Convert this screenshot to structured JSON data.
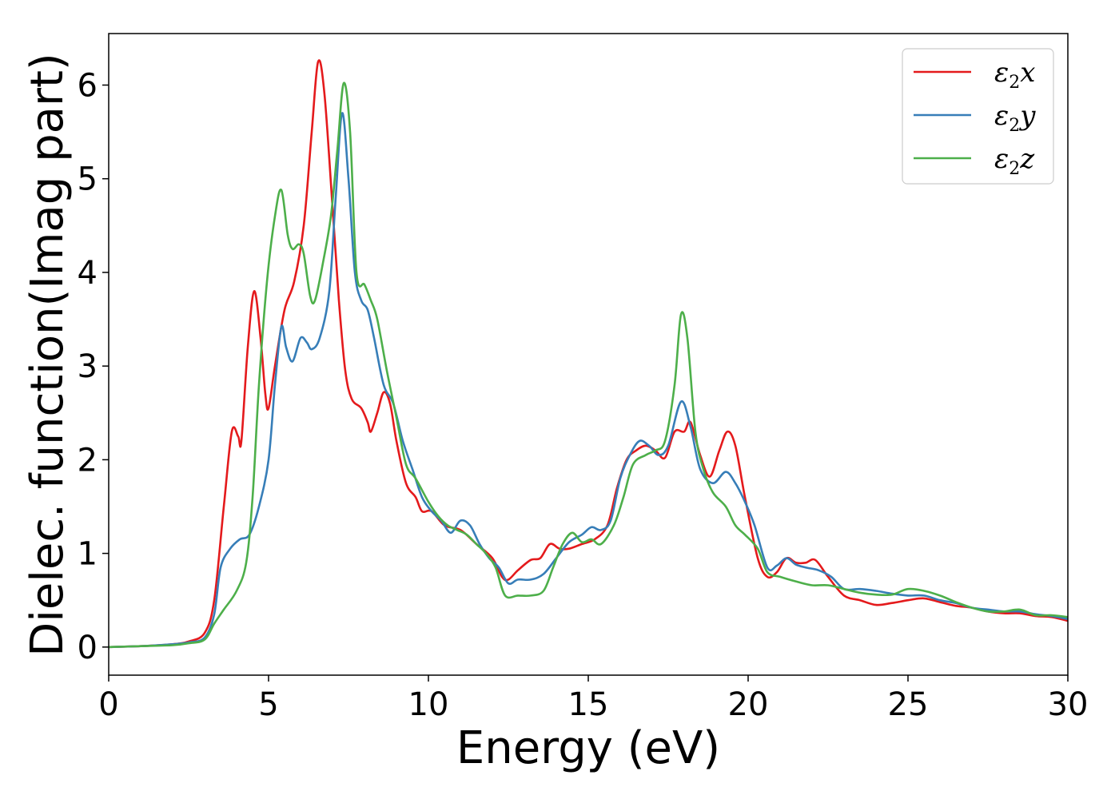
{
  "chart_data": {
    "type": "line",
    "title": "",
    "xlabel": "Energy (eV)",
    "ylabel": "Dielec. function(Imag part)",
    "xlim": [
      0,
      30
    ],
    "ylim": [
      -0.3,
      6.55
    ],
    "xticks": [
      "0",
      "5",
      "10",
      "15",
      "20",
      "25",
      "30"
    ],
    "yticks": [
      "0",
      "1",
      "2",
      "3",
      "4",
      "5",
      "6"
    ],
    "grid": false,
    "legend_position": "top-right",
    "series": [
      {
        "name": "ε2x",
        "legend_base": "ε",
        "legend_sub": "2",
        "legend_suffix": "x",
        "color": "#e41a1c",
        "points": [
          [
            0,
            0.0
          ],
          [
            1,
            0.01
          ],
          [
            2,
            0.03
          ],
          [
            2.5,
            0.06
          ],
          [
            3,
            0.15
          ],
          [
            3.3,
            0.5
          ],
          [
            3.6,
            1.5
          ],
          [
            3.85,
            2.3
          ],
          [
            4.05,
            2.25
          ],
          [
            4.15,
            2.2
          ],
          [
            4.35,
            3.2
          ],
          [
            4.55,
            3.8
          ],
          [
            4.75,
            3.3
          ],
          [
            4.9,
            2.7
          ],
          [
            5.0,
            2.55
          ],
          [
            5.2,
            3.0
          ],
          [
            5.5,
            3.6
          ],
          [
            5.8,
            3.9
          ],
          [
            6.1,
            4.5
          ],
          [
            6.35,
            5.5
          ],
          [
            6.55,
            6.25
          ],
          [
            6.75,
            5.9
          ],
          [
            7.0,
            4.7
          ],
          [
            7.2,
            3.7
          ],
          [
            7.4,
            2.95
          ],
          [
            7.6,
            2.65
          ],
          [
            7.9,
            2.55
          ],
          [
            8.1,
            2.4
          ],
          [
            8.2,
            2.3
          ],
          [
            8.4,
            2.5
          ],
          [
            8.6,
            2.72
          ],
          [
            8.8,
            2.6
          ],
          [
            9.0,
            2.2
          ],
          [
            9.3,
            1.75
          ],
          [
            9.6,
            1.6
          ],
          [
            9.8,
            1.45
          ],
          [
            10.1,
            1.45
          ],
          [
            10.5,
            1.3
          ],
          [
            11,
            1.25
          ],
          [
            11.5,
            1.1
          ],
          [
            12,
            0.95
          ],
          [
            12.3,
            0.75
          ],
          [
            12.5,
            0.72
          ],
          [
            12.8,
            0.82
          ],
          [
            13.2,
            0.93
          ],
          [
            13.5,
            0.95
          ],
          [
            13.8,
            1.1
          ],
          [
            14.1,
            1.05
          ],
          [
            14.4,
            1.05
          ],
          [
            14.8,
            1.1
          ],
          [
            15.2,
            1.15
          ],
          [
            15.6,
            1.3
          ],
          [
            15.9,
            1.7
          ],
          [
            16.2,
            2.0
          ],
          [
            16.5,
            2.1
          ],
          [
            16.8,
            2.15
          ],
          [
            17.1,
            2.1
          ],
          [
            17.4,
            2.02
          ],
          [
            17.7,
            2.3
          ],
          [
            18.0,
            2.3
          ],
          [
            18.2,
            2.4
          ],
          [
            18.5,
            2.05
          ],
          [
            18.8,
            1.82
          ],
          [
            19.1,
            2.1
          ],
          [
            19.35,
            2.3
          ],
          [
            19.6,
            2.15
          ],
          [
            19.9,
            1.6
          ],
          [
            20.3,
            0.95
          ],
          [
            20.6,
            0.75
          ],
          [
            20.9,
            0.8
          ],
          [
            21.2,
            0.95
          ],
          [
            21.5,
            0.9
          ],
          [
            21.8,
            0.9
          ],
          [
            22.1,
            0.93
          ],
          [
            22.5,
            0.75
          ],
          [
            23,
            0.55
          ],
          [
            23.5,
            0.5
          ],
          [
            24,
            0.45
          ],
          [
            24.5,
            0.47
          ],
          [
            25,
            0.5
          ],
          [
            25.5,
            0.52
          ],
          [
            26,
            0.48
          ],
          [
            26.5,
            0.44
          ],
          [
            27,
            0.42
          ],
          [
            27.5,
            0.38
          ],
          [
            28,
            0.36
          ],
          [
            28.5,
            0.36
          ],
          [
            29,
            0.33
          ],
          [
            29.5,
            0.32
          ],
          [
            30,
            0.28
          ]
        ]
      },
      {
        "name": "ε2y",
        "legend_base": "ε",
        "legend_sub": "2",
        "legend_suffix": "y",
        "color": "#377eb8",
        "points": [
          [
            0,
            0.0
          ],
          [
            1,
            0.01
          ],
          [
            2,
            0.03
          ],
          [
            2.5,
            0.05
          ],
          [
            3,
            0.1
          ],
          [
            3.3,
            0.35
          ],
          [
            3.5,
            0.85
          ],
          [
            3.8,
            1.05
          ],
          [
            4.1,
            1.15
          ],
          [
            4.4,
            1.2
          ],
          [
            4.7,
            1.5
          ],
          [
            5.0,
            2.0
          ],
          [
            5.2,
            2.8
          ],
          [
            5.4,
            3.42
          ],
          [
            5.55,
            3.2
          ],
          [
            5.75,
            3.05
          ],
          [
            6.0,
            3.3
          ],
          [
            6.2,
            3.25
          ],
          [
            6.35,
            3.18
          ],
          [
            6.6,
            3.3
          ],
          [
            6.9,
            3.8
          ],
          [
            7.1,
            4.8
          ],
          [
            7.3,
            5.7
          ],
          [
            7.5,
            5.0
          ],
          [
            7.7,
            4.0
          ],
          [
            7.9,
            3.7
          ],
          [
            8.1,
            3.6
          ],
          [
            8.3,
            3.3
          ],
          [
            8.6,
            2.8
          ],
          [
            8.9,
            2.6
          ],
          [
            9.2,
            2.2
          ],
          [
            9.5,
            1.9
          ],
          [
            9.8,
            1.6
          ],
          [
            10.1,
            1.45
          ],
          [
            10.4,
            1.35
          ],
          [
            10.7,
            1.22
          ],
          [
            11.0,
            1.35
          ],
          [
            11.3,
            1.3
          ],
          [
            11.6,
            1.1
          ],
          [
            11.9,
            0.95
          ],
          [
            12.2,
            0.85
          ],
          [
            12.5,
            0.68
          ],
          [
            12.8,
            0.72
          ],
          [
            13.2,
            0.72
          ],
          [
            13.6,
            0.78
          ],
          [
            14.0,
            0.95
          ],
          [
            14.4,
            1.12
          ],
          [
            14.8,
            1.2
          ],
          [
            15.1,
            1.28
          ],
          [
            15.4,
            1.25
          ],
          [
            15.7,
            1.35
          ],
          [
            16.0,
            1.8
          ],
          [
            16.3,
            2.05
          ],
          [
            16.6,
            2.2
          ],
          [
            16.9,
            2.15
          ],
          [
            17.2,
            2.05
          ],
          [
            17.5,
            2.15
          ],
          [
            17.9,
            2.62
          ],
          [
            18.2,
            2.35
          ],
          [
            18.5,
            1.9
          ],
          [
            18.9,
            1.75
          ],
          [
            19.3,
            1.87
          ],
          [
            19.6,
            1.75
          ],
          [
            19.9,
            1.55
          ],
          [
            20.2,
            1.3
          ],
          [
            20.6,
            0.85
          ],
          [
            20.9,
            0.87
          ],
          [
            21.2,
            0.95
          ],
          [
            21.5,
            0.88
          ],
          [
            21.8,
            0.85
          ],
          [
            22.2,
            0.82
          ],
          [
            22.6,
            0.75
          ],
          [
            23.0,
            0.62
          ],
          [
            23.5,
            0.62
          ],
          [
            24.0,
            0.6
          ],
          [
            24.5,
            0.57
          ],
          [
            25.0,
            0.55
          ],
          [
            25.5,
            0.55
          ],
          [
            26,
            0.5
          ],
          [
            26.5,
            0.47
          ],
          [
            27,
            0.42
          ],
          [
            27.5,
            0.4
          ],
          [
            28,
            0.38
          ],
          [
            28.5,
            0.38
          ],
          [
            29,
            0.35
          ],
          [
            29.5,
            0.33
          ],
          [
            30,
            0.3
          ]
        ]
      },
      {
        "name": "ε2z",
        "legend_base": "ε",
        "legend_sub": "2",
        "legend_suffix": "z",
        "color": "#4daf4a",
        "points": [
          [
            0,
            0.0
          ],
          [
            1,
            0.01
          ],
          [
            2,
            0.02
          ],
          [
            2.5,
            0.04
          ],
          [
            3,
            0.08
          ],
          [
            3.3,
            0.25
          ],
          [
            3.6,
            0.4
          ],
          [
            4.0,
            0.6
          ],
          [
            4.3,
            0.9
          ],
          [
            4.5,
            1.6
          ],
          [
            4.7,
            2.8
          ],
          [
            4.95,
            3.9
          ],
          [
            5.2,
            4.6
          ],
          [
            5.4,
            4.88
          ],
          [
            5.6,
            4.4
          ],
          [
            5.75,
            4.25
          ],
          [
            5.95,
            4.3
          ],
          [
            6.1,
            4.2
          ],
          [
            6.3,
            3.75
          ],
          [
            6.45,
            3.7
          ],
          [
            6.7,
            4.1
          ],
          [
            6.95,
            4.6
          ],
          [
            7.15,
            5.3
          ],
          [
            7.35,
            6.02
          ],
          [
            7.55,
            5.5
          ],
          [
            7.75,
            4.0
          ],
          [
            8.0,
            3.87
          ],
          [
            8.2,
            3.7
          ],
          [
            8.4,
            3.5
          ],
          [
            8.7,
            2.95
          ],
          [
            9.0,
            2.45
          ],
          [
            9.3,
            1.95
          ],
          [
            9.6,
            1.8
          ],
          [
            10.0,
            1.55
          ],
          [
            10.3,
            1.4
          ],
          [
            10.6,
            1.3
          ],
          [
            10.9,
            1.25
          ],
          [
            11.2,
            1.2
          ],
          [
            11.5,
            1.1
          ],
          [
            11.8,
            1.0
          ],
          [
            12.1,
            0.85
          ],
          [
            12.4,
            0.55
          ],
          [
            12.8,
            0.55
          ],
          [
            13.2,
            0.55
          ],
          [
            13.6,
            0.6
          ],
          [
            13.9,
            0.85
          ],
          [
            14.2,
            1.1
          ],
          [
            14.5,
            1.22
          ],
          [
            14.8,
            1.12
          ],
          [
            15.1,
            1.15
          ],
          [
            15.4,
            1.1
          ],
          [
            15.8,
            1.3
          ],
          [
            16.1,
            1.6
          ],
          [
            16.4,
            1.95
          ],
          [
            16.8,
            2.05
          ],
          [
            17.1,
            2.1
          ],
          [
            17.4,
            2.2
          ],
          [
            17.7,
            2.8
          ],
          [
            17.9,
            3.55
          ],
          [
            18.1,
            3.3
          ],
          [
            18.35,
            2.3
          ],
          [
            18.6,
            1.9
          ],
          [
            18.9,
            1.65
          ],
          [
            19.3,
            1.5
          ],
          [
            19.6,
            1.3
          ],
          [
            19.9,
            1.2
          ],
          [
            20.3,
            1.05
          ],
          [
            20.6,
            0.8
          ],
          [
            21.0,
            0.75
          ],
          [
            21.5,
            0.7
          ],
          [
            22.0,
            0.66
          ],
          [
            22.5,
            0.66
          ],
          [
            23.0,
            0.62
          ],
          [
            23.5,
            0.58
          ],
          [
            24.0,
            0.56
          ],
          [
            24.5,
            0.56
          ],
          [
            25.0,
            0.62
          ],
          [
            25.5,
            0.6
          ],
          [
            26.0,
            0.55
          ],
          [
            26.5,
            0.48
          ],
          [
            27.0,
            0.42
          ],
          [
            27.5,
            0.38
          ],
          [
            28.0,
            0.38
          ],
          [
            28.5,
            0.4
          ],
          [
            29.0,
            0.34
          ],
          [
            29.5,
            0.34
          ],
          [
            30,
            0.32
          ]
        ]
      }
    ]
  }
}
